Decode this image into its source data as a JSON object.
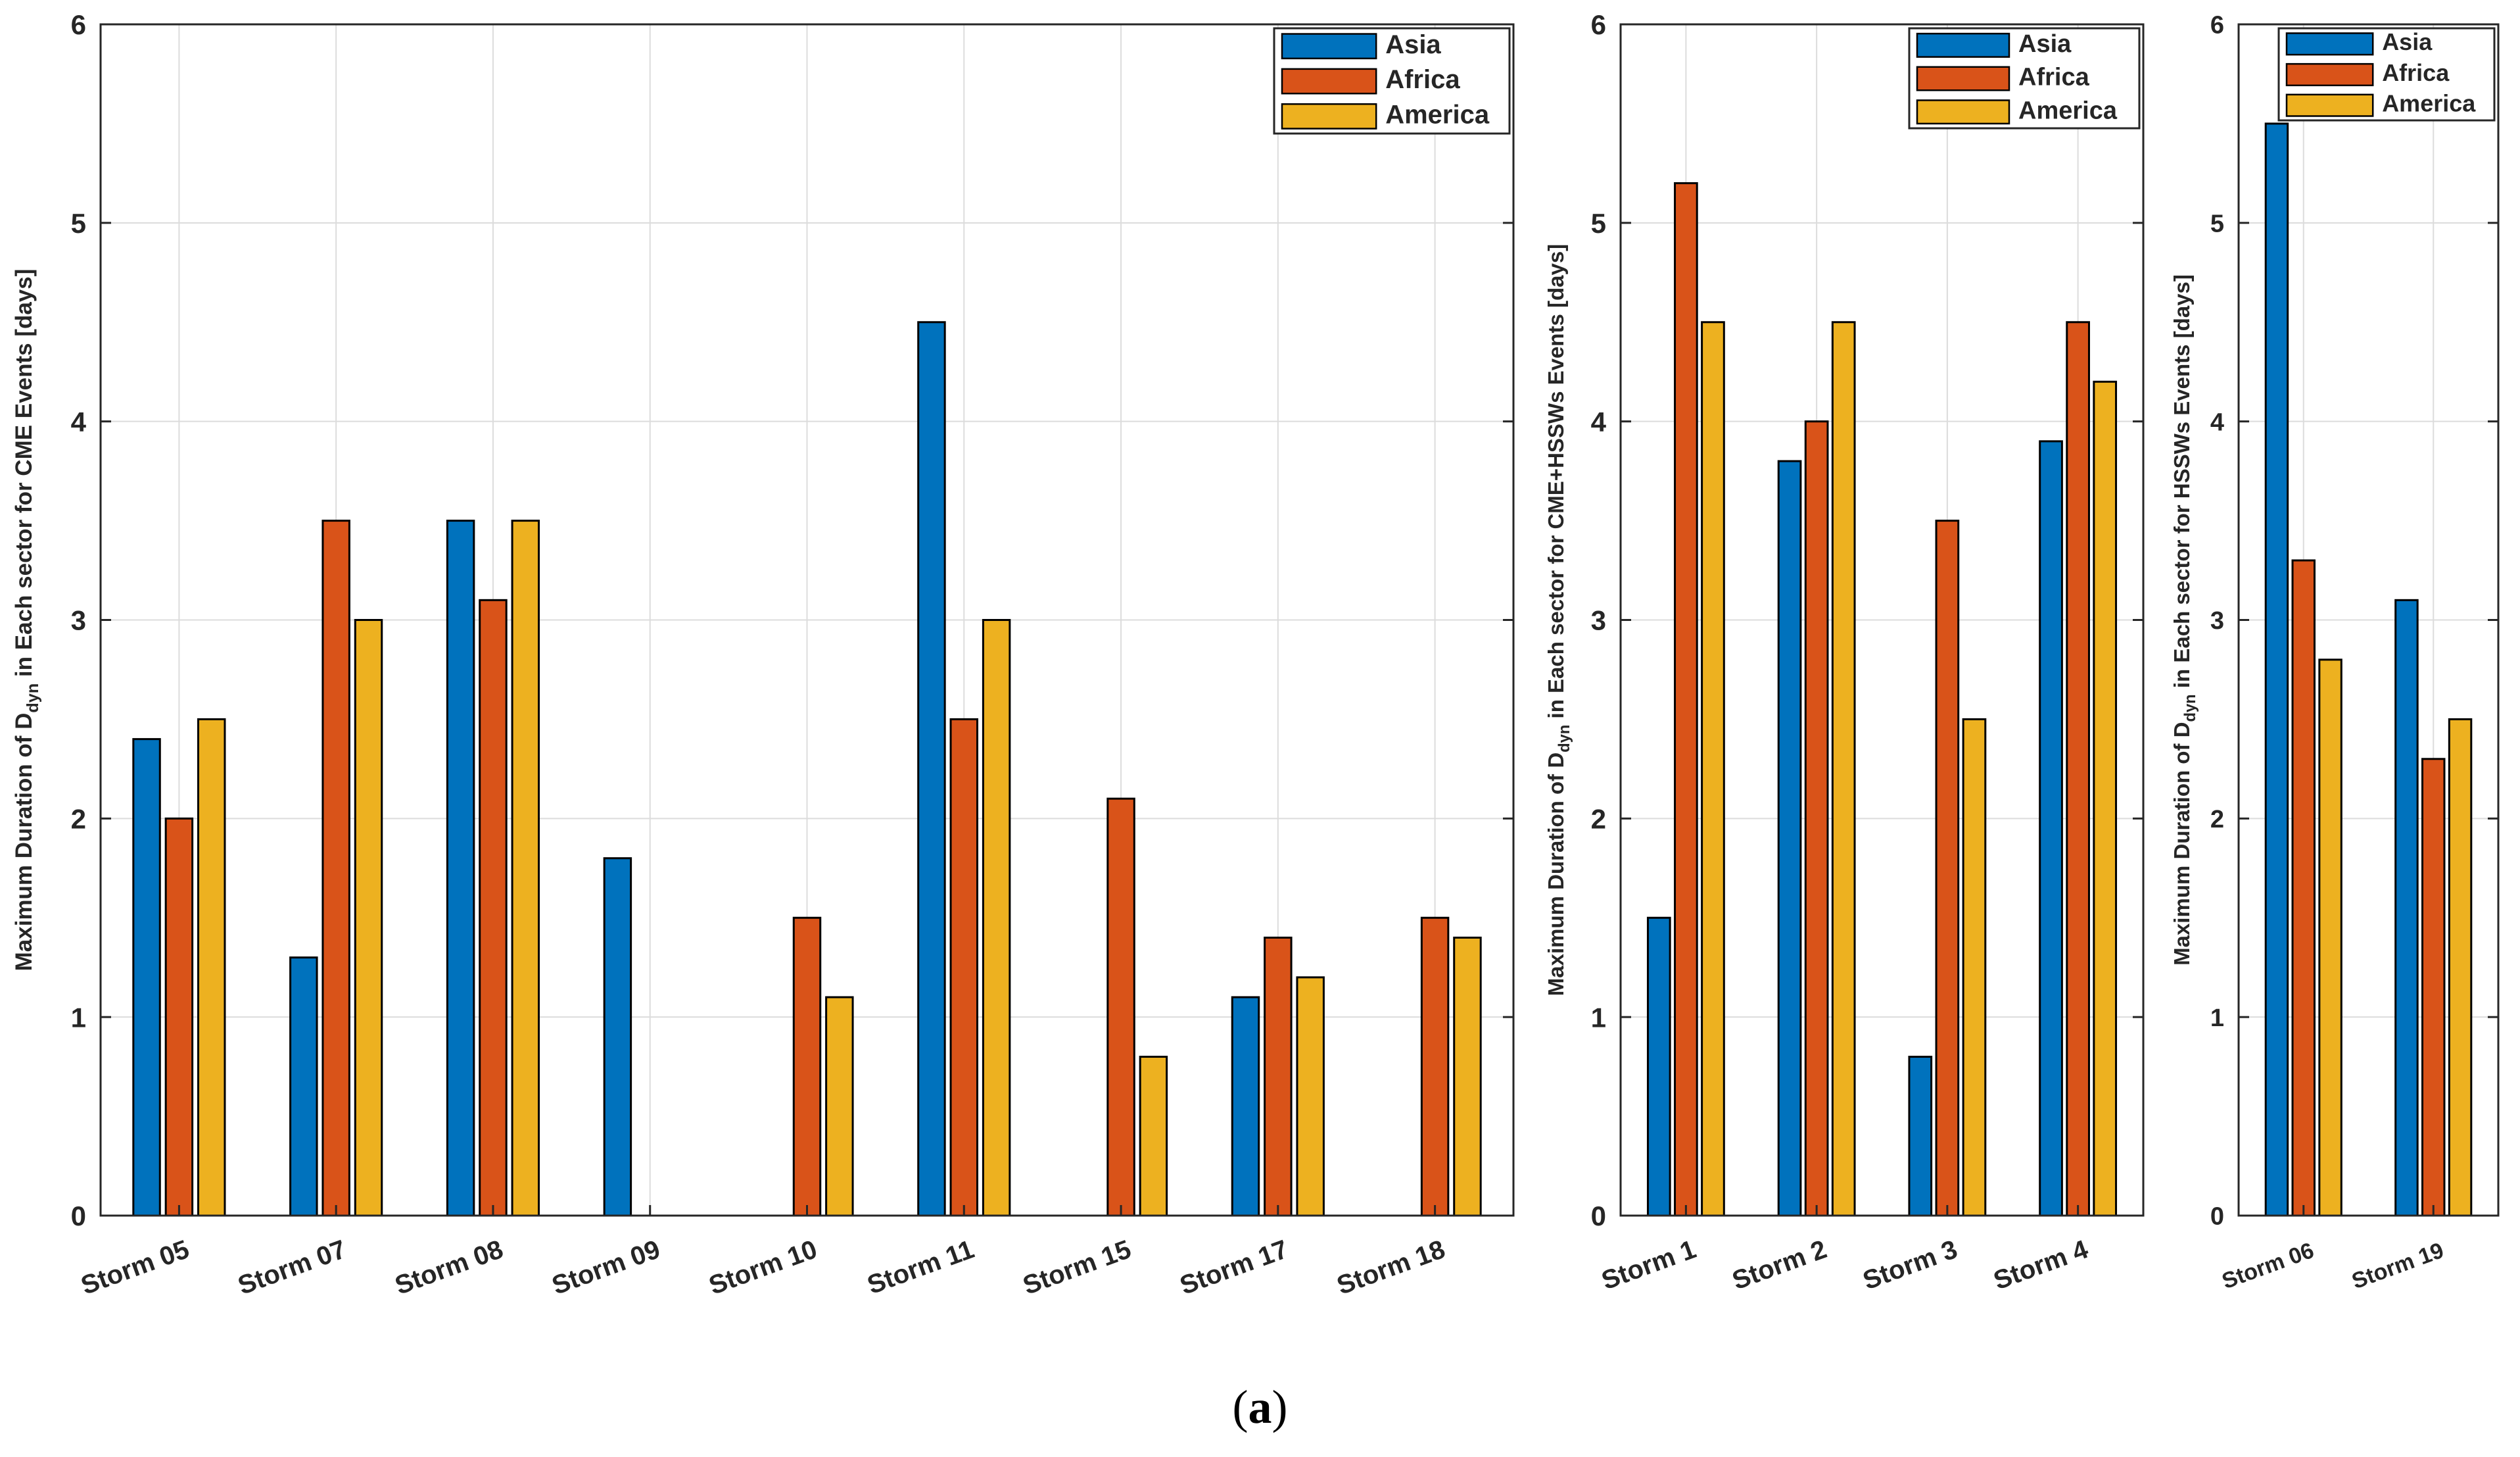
{
  "colors": {
    "Asia": "#0072BD",
    "Africa": "#D95319",
    "America": "#EDB120"
  },
  "caption": {
    "open": "(",
    "letter": "a",
    "close": ")"
  },
  "chart_data": [
    {
      "type": "bar",
      "title": "",
      "xlabel": "",
      "ylabel_prefix": "Maximum Duration of D",
      "ylabel_sub": "dyn",
      "ylabel_suffix": " in Each sector for CME Events [days]",
      "ylim": [
        0,
        6
      ],
      "yticks": [
        "0",
        "1",
        "2",
        "3",
        "4",
        "5",
        "6"
      ],
      "grid": true,
      "legend_position": "top-right",
      "categories": [
        "Storm 05",
        "Storm 07",
        "Storm 08",
        "Storm 09",
        "Storm 10",
        "Storm 11",
        "Storm 15",
        "Storm 17",
        "Storm 18"
      ],
      "series": [
        {
          "name": "Asia",
          "values": [
            2.4,
            1.3,
            3.5,
            1.8,
            0,
            4.5,
            0,
            1.1,
            0
          ]
        },
        {
          "name": "Africa",
          "values": [
            2.0,
            3.5,
            3.1,
            0,
            1.5,
            2.5,
            2.1,
            1.4,
            1.5
          ]
        },
        {
          "name": "America",
          "values": [
            2.5,
            3.0,
            3.5,
            0,
            1.1,
            3.0,
            0.8,
            1.2,
            1.4
          ]
        }
      ]
    },
    {
      "type": "bar",
      "title": "",
      "xlabel": "",
      "ylabel_prefix": "Maximum Duration of D",
      "ylabel_sub": "dyn",
      "ylabel_suffix": " in Each sector for CME+HSSWs Events [days]",
      "ylim": [
        0,
        6
      ],
      "yticks": [
        "0",
        "1",
        "2",
        "3",
        "4",
        "5",
        "6"
      ],
      "grid": true,
      "legend_position": "top-right",
      "categories": [
        "Storm 1",
        "Storm 2",
        "Storm 3",
        "Storm 4"
      ],
      "series": [
        {
          "name": "Asia",
          "values": [
            1.5,
            3.8,
            0.8,
            3.9
          ]
        },
        {
          "name": "Africa",
          "values": [
            5.2,
            4.0,
            3.5,
            4.5
          ]
        },
        {
          "name": "America",
          "values": [
            4.5,
            4.5,
            2.5,
            4.2
          ]
        }
      ]
    },
    {
      "type": "bar",
      "title": "",
      "xlabel": "",
      "ylabel_prefix": "Maximum Duration of D",
      "ylabel_sub": "dyn",
      "ylabel_suffix": " in Each sector for HSSWs Events [days]",
      "ylim": [
        0,
        6
      ],
      "yticks": [
        "0",
        "1",
        "2",
        "3",
        "4",
        "5",
        "6"
      ],
      "grid": true,
      "legend_position": "top-right",
      "categories": [
        "Storm 06",
        "Storm 19"
      ],
      "series": [
        {
          "name": "Asia",
          "values": [
            5.5,
            3.1
          ]
        },
        {
          "name": "Africa",
          "values": [
            3.3,
            2.3
          ]
        },
        {
          "name": "America",
          "values": [
            2.8,
            2.5
          ]
        }
      ]
    }
  ]
}
